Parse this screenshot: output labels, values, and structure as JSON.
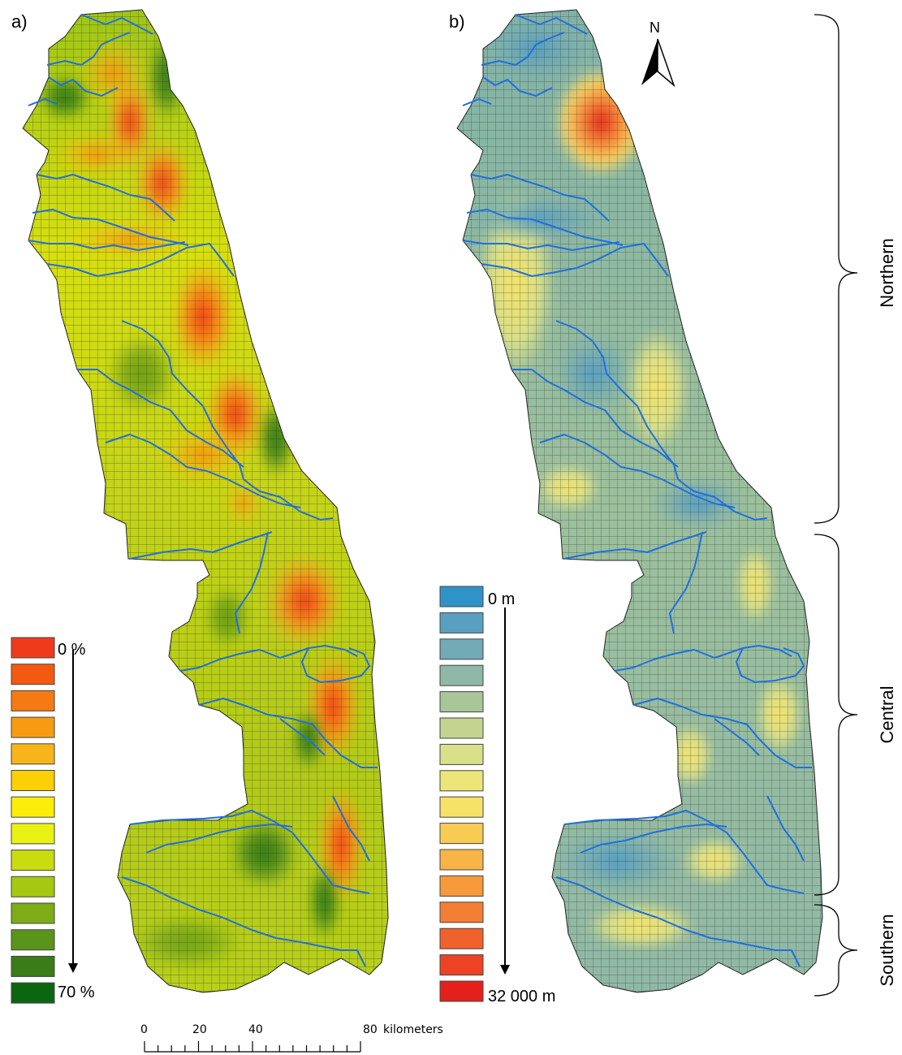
{
  "panels": [
    {
      "id": "a",
      "label": "a)",
      "legend": {
        "min_label": "0 %",
        "max_label": "70 %",
        "colors": [
          "#f03a1c",
          "#f35a10",
          "#f57a14",
          "#f79b12",
          "#f8b41a",
          "#fccf06",
          "#fcee0a",
          "#eaf214",
          "#c8dc10",
          "#a6c812",
          "#7eab16",
          "#5a9418",
          "#3a7c18",
          "#0b6610"
        ]
      }
    },
    {
      "id": "b",
      "label": "b)",
      "legend": {
        "min_label": "0 m",
        "max_label": "32 000 m",
        "colors": [
          "#2f93c8",
          "#5a9fc2",
          "#72aab6",
          "#8fb8a6",
          "#a8c698",
          "#c3d490",
          "#d8e08a",
          "#ece67a",
          "#f6e266",
          "#f8cc52",
          "#f8b446",
          "#f69a3c",
          "#f47e34",
          "#f0622c",
          "#ec4324",
          "#e3201c"
        ]
      }
    }
  ],
  "north_arrow": {
    "label": "N"
  },
  "scale_bar": {
    "ticks": [
      "0",
      "20",
      "40",
      "80"
    ],
    "unit": "kilometers"
  },
  "regions": [
    "Northern",
    "Central",
    "Southern"
  ],
  "colors": {
    "river": "#1f6fe0",
    "grid_line": "#333333",
    "outline": "#000000"
  }
}
